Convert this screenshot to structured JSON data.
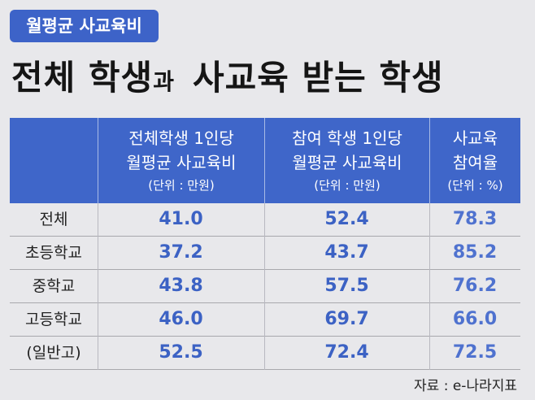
{
  "tag": "월평균 사교육비",
  "title": {
    "main": "전체 학생",
    "particle": "과",
    "rest": "사교육 받는 학생"
  },
  "table": {
    "header": [
      [
        "전체학생 1인당",
        "월평균 사교육비",
        "(단위 : 만원)"
      ],
      [
        "참여 학생 1인당",
        "월평균 사교육비",
        "(단위 : 만원)"
      ],
      [
        "사교육",
        "참여율",
        "(단위 : %)"
      ]
    ],
    "rows": [
      [
        "전체",
        "41.0",
        "52.4",
        "78.3"
      ],
      [
        "초등학교",
        "37.2",
        "43.7",
        "85.2"
      ],
      [
        "중학교",
        "43.8",
        "57.5",
        "76.2"
      ],
      [
        "고등학교",
        "46.0",
        "69.7",
        "66.0"
      ],
      [
        "(일반고)",
        "52.5",
        "72.4",
        "72.5"
      ]
    ]
  },
  "source": "자료 : e-나라지표"
}
